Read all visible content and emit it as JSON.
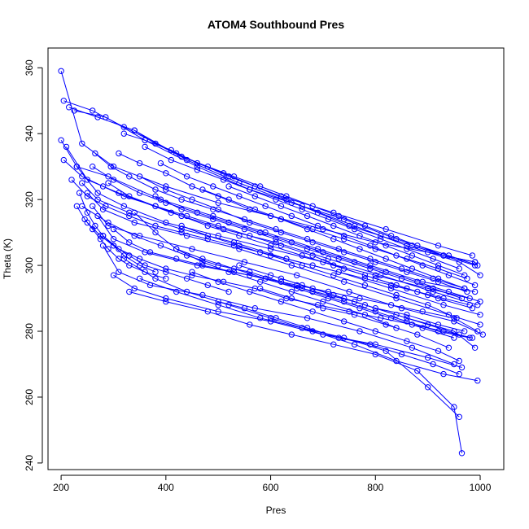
{
  "chart_data": {
    "type": "scatter",
    "title": "ATOM4 Southbound Pres",
    "xlabel": "Pres",
    "ylabel": "Theta (K)",
    "xlim": [
      175,
      1045
    ],
    "ylim": [
      238,
      366
    ],
    "xticks": [
      200,
      400,
      600,
      800,
      1000
    ],
    "yticks": [
      240,
      260,
      280,
      300,
      320,
      340,
      360
    ],
    "grid": false,
    "legend": "none",
    "series_color": "#0000ff",
    "series": [
      {
        "x": [
          200,
          240,
          300,
          400,
          500,
          600,
          700,
          800,
          900,
          990
        ],
        "y": [
          359,
          337,
          330,
          324,
          319,
          315,
          311,
          307,
          304,
          301
        ]
      },
      {
        "x": [
          205,
          260,
          320,
          420,
          520,
          620,
          720,
          820,
          920,
          985
        ],
        "y": [
          350,
          347,
          342,
          334,
          327,
          321,
          316,
          311,
          306,
          303
        ]
      },
      {
        "x": [
          215,
          270,
          340,
          440,
          540,
          640,
          740,
          840,
          940,
          995
        ],
        "y": [
          348,
          345,
          341,
          332,
          325,
          319,
          314,
          308,
          303,
          300
        ]
      },
      {
        "x": [
          225,
          285,
          360,
          460,
          560,
          660,
          760,
          860,
          960,
          1000
        ],
        "y": [
          347,
          345,
          338,
          330,
          323,
          318,
          312,
          306,
          301,
          297
        ]
      },
      {
        "x": [
          200,
          230,
          290,
          390,
          490,
          590,
          690,
          790,
          890,
          990
        ],
        "y": [
          338,
          330,
          327,
          320,
          315,
          310,
          305,
          300,
          295,
          292
        ]
      },
      {
        "x": [
          210,
          250,
          310,
          410,
          510,
          610,
          710,
          810,
          910,
          995
        ],
        "y": [
          336,
          326,
          322,
          316,
          311,
          307,
          302,
          297,
          292,
          288
        ]
      },
      {
        "x": [
          240,
          270,
          330,
          430,
          530,
          630,
          730,
          830,
          930,
          1000
        ],
        "y": [
          325,
          320,
          316,
          311,
          307,
          302,
          298,
          293,
          288,
          285
        ]
      },
      {
        "x": [
          250,
          280,
          340,
          440,
          540,
          640,
          740,
          840,
          940,
          1000
        ],
        "y": [
          322,
          317,
          313,
          309,
          305,
          300,
          295,
          290,
          285,
          282
        ]
      },
      {
        "x": [
          260,
          290,
          350,
          450,
          550,
          650,
          750,
          850,
          950,
          1005
        ],
        "y": [
          318,
          312,
          309,
          305,
          301,
          297,
          292,
          287,
          283,
          279
        ]
      },
      {
        "x": [
          270,
          300,
          360,
          460,
          560,
          660,
          760,
          860,
          950,
          990
        ],
        "y": [
          315,
          308,
          304,
          300,
          297,
          293,
          289,
          284,
          280,
          275
        ]
      },
      {
        "x": [
          230,
          270,
          320,
          400,
          500,
          600,
          700,
          800,
          900,
          980
        ],
        "y": [
          330,
          322,
          318,
          313,
          309,
          305,
          301,
          297,
          293,
          290
        ]
      },
      {
        "x": [
          280,
          310,
          370,
          470,
          570,
          670,
          770,
          870,
          950
        ],
        "y": [
          306,
          298,
          294,
          291,
          287,
          284,
          280,
          275,
          270
        ]
      },
      {
        "x": [
          300,
          340,
          400,
          500,
          600,
          700,
          800,
          900,
          965
        ],
        "y": [
          297,
          293,
          290,
          286,
          283,
          279,
          276,
          272,
          269
        ]
      },
      {
        "x": [
          320,
          380,
          440,
          520,
          600,
          680,
          760,
          840,
          930,
          995
        ],
        "y": [
          302,
          296,
          292,
          288,
          284,
          280,
          276,
          271,
          267,
          265
        ]
      },
      {
        "x": [
          350,
          420,
          500,
          580,
          660,
          740,
          820,
          900,
          960
        ],
        "y": [
          296,
          292,
          288,
          284,
          281,
          278,
          274,
          263,
          254
        ]
      },
      {
        "x": [
          330,
          400,
          480,
          560,
          640,
          720,
          800,
          880,
          950,
          965
        ],
        "y": [
          292,
          289,
          286,
          282,
          279,
          276,
          273,
          268,
          257,
          243
        ]
      },
      {
        "x": [
          340,
          380,
          420,
          470,
          520,
          580,
          640,
          700,
          780,
          840
        ],
        "y": [
          316,
          310,
          305,
          301,
          298,
          295,
          292,
          289,
          285,
          281
        ]
      },
      {
        "x": [
          290,
          330,
          380,
          430,
          480,
          540,
          600,
          660,
          720,
          780,
          840,
          900
        ],
        "y": [
          325,
          321,
          318,
          315,
          312,
          309,
          306,
          303,
          300,
          297,
          294,
          291
        ]
      },
      {
        "x": [
          310,
          350,
          400,
          450,
          500,
          560,
          620,
          680,
          740,
          800,
          860,
          920,
          975
        ],
        "y": [
          334,
          331,
          328,
          324,
          321,
          317,
          314,
          311,
          308,
          305,
          302,
          299,
          296
        ]
      },
      {
        "x": [
          320,
          360,
          410,
          460,
          510,
          570,
          630,
          690,
          750,
          810,
          870,
          930,
          990
        ],
        "y": [
          340,
          338,
          335,
          331,
          328,
          324,
          320,
          316,
          312,
          309,
          306,
          303,
          300
        ]
      },
      {
        "x": [
          205,
          240,
          280,
          320,
          380,
          440,
          500,
          560,
          620,
          680,
          740,
          800,
          860,
          920,
          985
        ],
        "y": [
          332,
          327,
          324,
          321,
          318,
          315,
          312,
          309,
          306,
          303,
          299,
          296,
          293,
          290,
          287
        ]
      },
      {
        "x": [
          260,
          300,
          350,
          400,
          460,
          520,
          580,
          640,
          700,
          760,
          820,
          880,
          940,
          1000
        ],
        "y": [
          330,
          326,
          322,
          319,
          316,
          313,
          310,
          307,
          304,
          301,
          298,
          295,
          292,
          289
        ]
      },
      {
        "x": [
          240,
          290,
          340,
          390,
          440,
          500,
          560,
          620,
          680,
          740,
          800,
          860,
          920,
          980
        ],
        "y": [
          318,
          313,
          309,
          306,
          303,
          300,
          298,
          295,
          292,
          289,
          286,
          283,
          280,
          278
        ]
      },
      {
        "x": [
          265,
          295,
          330,
          380,
          430,
          490,
          550,
          610,
          670,
          730,
          790,
          850,
          910,
          970
        ],
        "y": [
          334,
          330,
          327,
          323,
          320,
          317,
          314,
          311,
          308,
          305,
          302,
          299,
          296,
          293
        ]
      },
      {
        "x": [
          350,
          400,
          450,
          500,
          560,
          620,
          680,
          740,
          800,
          860,
          920,
          975
        ],
        "y": [
          327,
          323,
          320,
          317,
          313,
          310,
          307,
          304,
          301,
          298,
          295,
          292
        ]
      },
      {
        "x": [
          380,
          430,
          490,
          550,
          610,
          670,
          730,
          790,
          850,
          910,
          965
        ],
        "y": [
          321,
          317,
          314,
          311,
          308,
          305,
          302,
          299,
          296,
          293,
          290
        ]
      },
      {
        "x": [
          420,
          470,
          530,
          590,
          650,
          710,
          770,
          830,
          890,
          950
        ],
        "y": [
          305,
          302,
          299,
          296,
          293,
          290,
          287,
          284,
          281,
          278
        ]
      },
      {
        "x": [
          450,
          500,
          560,
          620,
          680,
          740,
          800,
          860,
          920,
          960
        ],
        "y": [
          298,
          295,
          292,
          289,
          286,
          283,
          280,
          277,
          274,
          271
        ]
      },
      {
        "x": [
          500,
          550,
          610,
          670,
          730,
          790,
          850,
          910,
          960
        ],
        "y": [
          289,
          287,
          284,
          281,
          278,
          276,
          273,
          270,
          267
        ]
      },
      {
        "x": [
          430,
          480,
          540,
          600,
          660,
          720,
          780,
          840,
          900,
          955
        ],
        "y": [
          312,
          309,
          306,
          303,
          300,
          297,
          294,
          291,
          288,
          284
        ]
      },
      {
        "x": [
          280,
          310,
          350,
          400,
          450,
          510,
          570,
          630,
          690,
          750,
          810,
          870,
          930,
          985
        ],
        "y": [
          309,
          305,
          302,
          299,
          297,
          295,
          293,
          290,
          288,
          286,
          284,
          282,
          280,
          278
        ]
      },
      {
        "x": [
          300,
          330,
          370,
          420,
          470,
          530,
          590,
          650,
          710,
          770,
          830,
          890,
          950,
          995
        ],
        "y": [
          311,
          307,
          304,
          302,
          300,
          298,
          296,
          294,
          292,
          290,
          288,
          286,
          284,
          280
        ]
      },
      {
        "x": [
          220,
          250,
          285,
          330,
          380,
          430,
          480,
          530,
          580,
          630,
          680,
          730,
          780,
          830,
          880,
          930,
          980
        ],
        "y": [
          326,
          321,
          318,
          315,
          312,
          310,
          308,
          306,
          304,
          302,
          300,
          298,
          296,
          294,
          292,
          290,
          288
        ]
      },
      {
        "x": [
          340,
          380,
          430,
          480,
          530,
          580,
          630,
          680,
          730,
          780,
          830,
          880,
          930,
          990
        ],
        "y": [
          341,
          337,
          333,
          330,
          327,
          324,
          321,
          318,
          315,
          312,
          309,
          306,
          303,
          301
        ]
      },
      {
        "x": [
          360,
          410,
          460,
          510,
          560,
          610,
          660,
          710,
          760,
          810,
          860,
          910,
          960
        ],
        "y": [
          336,
          332,
          329,
          326,
          323,
          320,
          317,
          314,
          311,
          308,
          305,
          302,
          299
        ]
      },
      {
        "x": [
          390,
          440,
          490,
          540,
          590,
          640,
          690,
          740,
          790,
          840,
          890,
          940,
          990
        ],
        "y": [
          331,
          327,
          324,
          321,
          318,
          315,
          312,
          309,
          306,
          303,
          300,
          297,
          294
        ]
      },
      {
        "x": [
          470,
          520,
          570,
          620,
          670,
          720,
          770,
          820,
          870,
          920,
          970
        ],
        "y": [
          323,
          320,
          317,
          314,
          311,
          308,
          305,
          302,
          299,
          296,
          293
        ]
      },
      {
        "x": [
          520,
          570,
          620,
          670,
          720,
          770,
          820,
          870,
          920,
          970
        ],
        "y": [
          324,
          321,
          318,
          315,
          312,
          309,
          306,
          303,
          300,
          297
        ]
      },
      {
        "x": [
          540,
          600,
          660,
          720,
          780,
          840,
          900,
          960
        ],
        "y": [
          300,
          297,
          294,
          291,
          288,
          285,
          282,
          279
        ]
      },
      {
        "x": [
          580,
          640,
          700,
          760,
          820,
          880,
          940
        ],
        "y": [
          293,
          290,
          287,
          285,
          282,
          279,
          275
        ]
      },
      {
        "x": [
          620,
          680,
          740,
          800,
          860,
          920,
          970
        ],
        "y": [
          296,
          293,
          290,
          287,
          285,
          282,
          280
        ]
      },
      {
        "x": [
          250,
          275,
          300,
          330,
          360,
          400,
          440,
          480,
          520
        ],
        "y": [
          313,
          309,
          306,
          303,
          300,
          298,
          296,
          294,
          292
        ]
      },
      {
        "x": [
          230,
          245,
          260,
          275,
          290,
          310,
          330,
          360,
          400
        ],
        "y": [
          318,
          314,
          311,
          308,
          305,
          302,
          300,
          298,
          296
        ]
      },
      {
        "x": [
          235,
          250,
          265,
          280,
          300,
          320,
          350,
          380
        ],
        "y": [
          322,
          316,
          312,
          309,
          306,
          303,
          300,
          298
        ]
      }
    ]
  }
}
